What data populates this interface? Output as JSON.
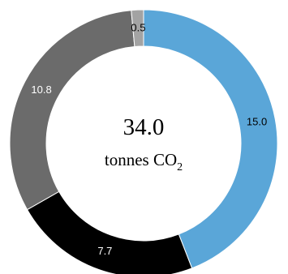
{
  "chart_data": {
    "type": "pie",
    "variant": "donut",
    "categories": [
      "",
      "",
      "",
      ""
    ],
    "values": [
      15.0,
      7.7,
      10.8,
      0.5
    ],
    "labels": [
      "15.0",
      "7.7",
      "10.8",
      "0.5"
    ],
    "colors": [
      "#5aa6d8",
      "#000000",
      "#6b6b6b",
      "#a3a3a3"
    ],
    "label_colors": [
      "#000000",
      "#ffffff",
      "#ffffff",
      "#000000"
    ],
    "center_value": "34.0",
    "center_unit": "tonnes CO",
    "center_unit_subscript": "2",
    "start": "top",
    "direction": "clockwise",
    "legend": "none"
  }
}
